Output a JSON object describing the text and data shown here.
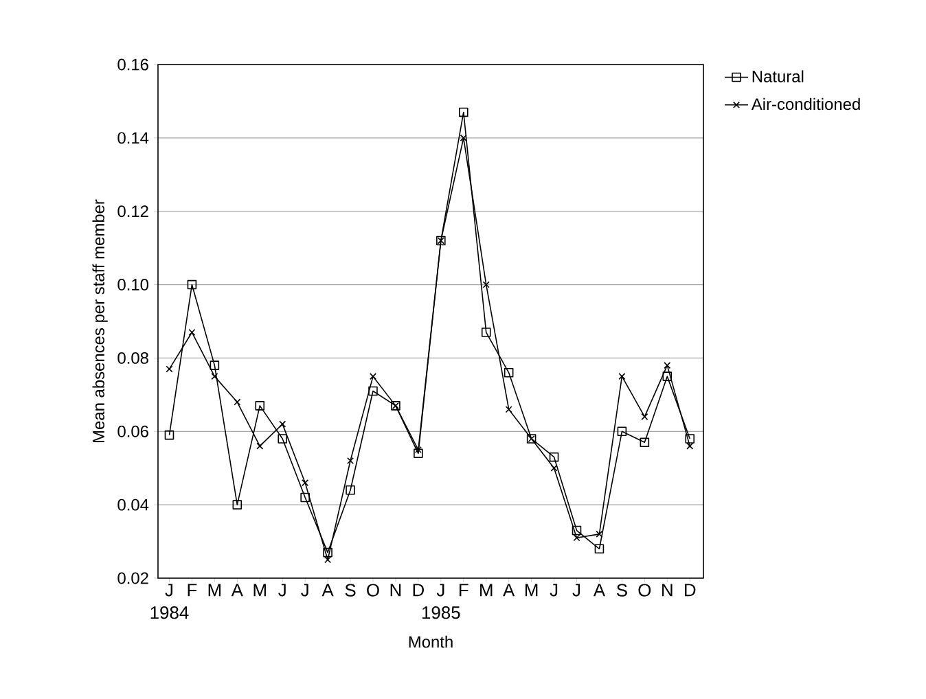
{
  "chart_data": {
    "type": "line",
    "xlabel": "Month",
    "ylabel": "Mean absences per staff member",
    "categories": [
      "J",
      "F",
      "M",
      "A",
      "M",
      "J",
      "J",
      "A",
      "S",
      "O",
      "N",
      "D",
      "J",
      "F",
      "M",
      "A",
      "M",
      "J",
      "J",
      "A",
      "S",
      "O",
      "N",
      "D"
    ],
    "annotations": [
      "1984",
      "1985"
    ],
    "series": [
      {
        "name": "Natural",
        "color": "#000000",
        "marker": "square",
        "values": [
          0.059,
          0.1,
          0.078,
          0.04,
          0.067,
          0.058,
          0.042,
          0.027,
          0.044,
          0.071,
          0.067,
          0.054,
          0.112,
          0.147,
          0.087,
          0.076,
          0.058,
          0.053,
          0.033,
          0.028,
          0.06,
          0.057,
          0.075,
          0.058
        ]
      },
      {
        "name": "Air-conditioned",
        "color": "#000000",
        "marker": "cross",
        "values": [
          0.077,
          0.087,
          0.075,
          0.068,
          0.056,
          0.062,
          0.046,
          0.025,
          0.052,
          0.075,
          0.067,
          0.055,
          0.112,
          0.14,
          0.1,
          0.066,
          0.058,
          0.05,
          0.031,
          0.032,
          0.075,
          0.064,
          0.078,
          0.056
        ]
      }
    ],
    "ylim": [
      0.02,
      0.16
    ],
    "yticks": [
      0.02,
      0.04,
      0.06,
      0.08,
      {
        "value": 0.1,
        "label": "0.10"
      },
      0.12,
      0.14,
      0.16
    ],
    "grid": "y",
    "legend": "top right",
    "line_style": "solid"
  }
}
